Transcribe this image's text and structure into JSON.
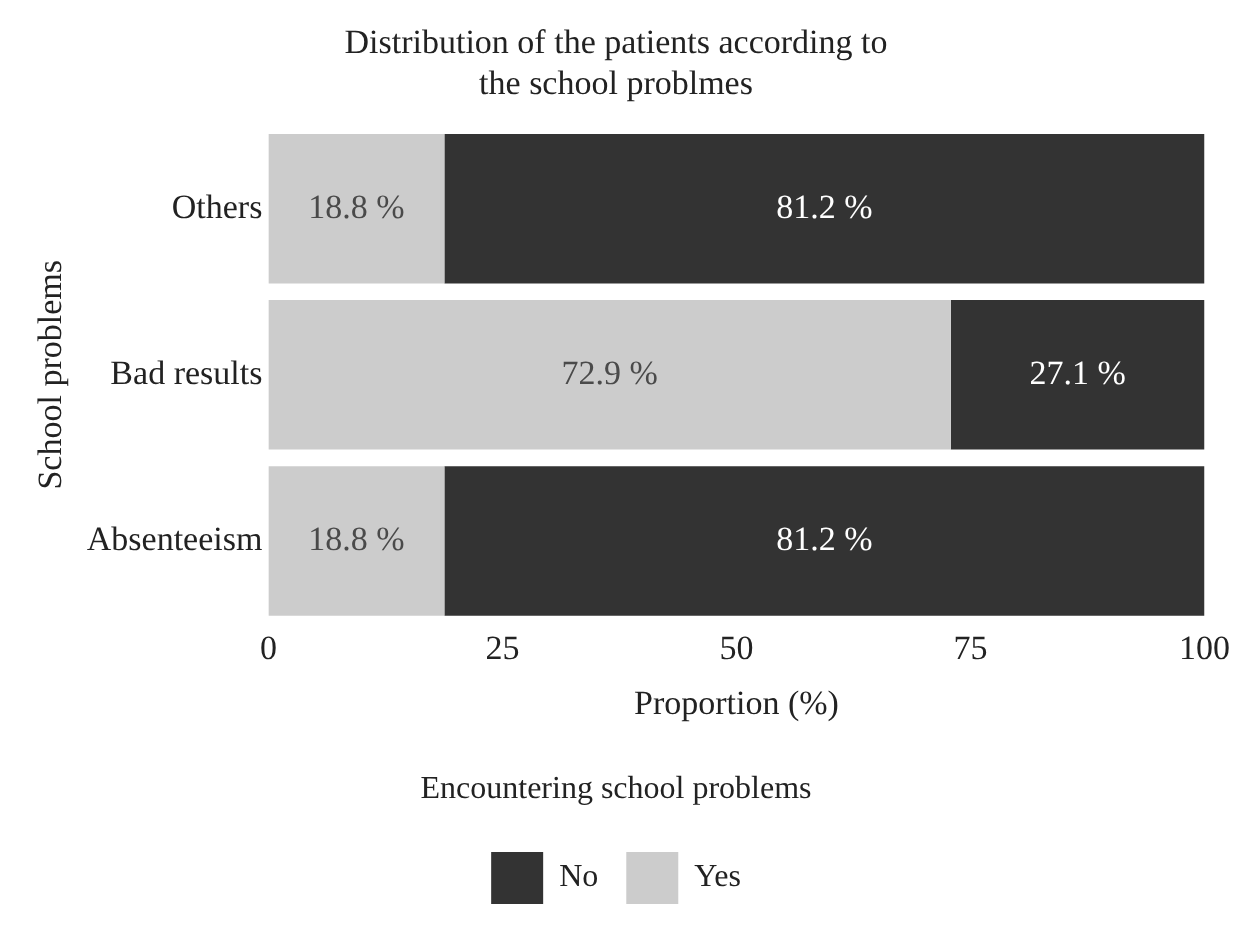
{
  "chart_data": {
    "type": "bar",
    "orientation": "horizontal",
    "stacked": true,
    "title": "Distribution of the patients according to the school problmes",
    "xlabel": "Proportion (%)",
    "ylabel": "School problems",
    "legend_title": "Encountering school problems",
    "legend": "bottom",
    "grid": false,
    "categories": [
      "Others",
      "Bad results",
      "Absenteeism"
    ],
    "xlim": [
      0,
      100
    ],
    "xticks": [
      0,
      25,
      50,
      75,
      100
    ],
    "series": [
      {
        "name": "Yes",
        "color": "#cccccc",
        "values": [
          18.8,
          72.9,
          18.8
        ],
        "value_labels": [
          "18.8 %",
          "72.9 %",
          "18.8 %"
        ]
      },
      {
        "name": "No",
        "color": "#333333",
        "values": [
          81.2,
          27.1,
          81.2
        ],
        "value_labels": [
          "81.2 %",
          "27.1 %",
          "81.2 %"
        ]
      }
    ]
  }
}
